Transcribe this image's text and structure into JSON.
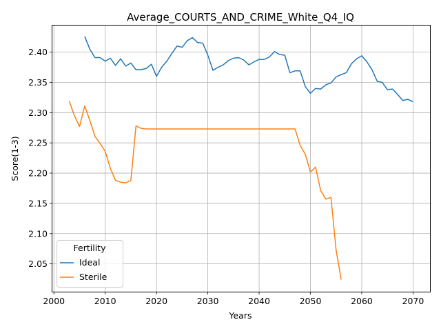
{
  "chart_data": {
    "type": "line",
    "title": "Average_COURTS_AND_CRIME_White_Q4_IQ",
    "xlabel": "Years",
    "ylabel": "Score(1-3)",
    "xlim": [
      1999.7,
      2073.3
    ],
    "ylim": [
      2.004,
      2.444
    ],
    "x_ticks": [
      2000,
      2010,
      2020,
      2030,
      2040,
      2050,
      2060,
      2070
    ],
    "x_tick_labels": [
      "2000",
      "2010",
      "2020",
      "2030",
      "2040",
      "2050",
      "2060",
      "2070"
    ],
    "y_ticks": [
      2.05,
      2.1,
      2.15,
      2.2,
      2.25,
      2.3,
      2.35,
      2.4
    ],
    "y_tick_labels": [
      "2.05",
      "2.10",
      "2.15",
      "2.20",
      "2.25",
      "2.30",
      "2.35",
      "2.40"
    ],
    "grid": true,
    "legend": {
      "title": "Fertility",
      "placement": "lower-left"
    },
    "series": [
      {
        "name": "Ideal",
        "color": "#1f77b4",
        "x": [
          2006,
          2007,
          2008,
          2009,
          2010,
          2011,
          2012,
          2013,
          2014,
          2015,
          2016,
          2017,
          2018,
          2019,
          2020,
          2021,
          2022,
          2023,
          2024,
          2025,
          2026,
          2027,
          2028,
          2029,
          2030,
          2031,
          2032,
          2033,
          2034,
          2035,
          2036,
          2037,
          2038,
          2039,
          2040,
          2041,
          2042,
          2043,
          2044,
          2045,
          2046,
          2047,
          2048,
          2049,
          2050,
          2051,
          2052,
          2053,
          2054,
          2055,
          2056,
          2057,
          2058,
          2059,
          2060,
          2061,
          2062,
          2063,
          2064,
          2065,
          2066,
          2067,
          2068,
          2069,
          2070
        ],
        "y": [
          2.426,
          2.405,
          2.391,
          2.391,
          2.385,
          2.39,
          2.378,
          2.389,
          2.377,
          2.382,
          2.371,
          2.371,
          2.373,
          2.38,
          2.36,
          2.375,
          2.385,
          2.398,
          2.41,
          2.408,
          2.419,
          2.424,
          2.416,
          2.415,
          2.395,
          2.37,
          2.375,
          2.379,
          2.386,
          2.39,
          2.391,
          2.387,
          2.379,
          2.384,
          2.388,
          2.388,
          2.392,
          2.401,
          2.396,
          2.395,
          2.366,
          2.369,
          2.369,
          2.343,
          2.332,
          2.34,
          2.339,
          2.346,
          2.349,
          2.359,
          2.363,
          2.366,
          2.381,
          2.389,
          2.394,
          2.384,
          2.371,
          2.352,
          2.35,
          2.338,
          2.339,
          2.33,
          2.32,
          2.322,
          2.318
        ]
      },
      {
        "name": "Sterile",
        "color": "#ff7f0e",
        "x": [
          2003,
          2004,
          2005,
          2006,
          2007,
          2008,
          2009,
          2010,
          2011,
          2012,
          2013,
          2014,
          2015,
          2016,
          2017,
          2018,
          2019,
          2020,
          2021,
          2022,
          2023,
          2024,
          2025,
          2026,
          2027,
          2028,
          2029,
          2030,
          2031,
          2032,
          2033,
          2034,
          2035,
          2036,
          2037,
          2038,
          2039,
          2040,
          2041,
          2042,
          2043,
          2044,
          2045,
          2046,
          2047,
          2048,
          2049,
          2050,
          2051,
          2052,
          2053,
          2054,
          2055,
          2056
        ],
        "y": [
          2.319,
          2.295,
          2.277,
          2.311,
          2.287,
          2.261,
          2.249,
          2.236,
          2.208,
          2.188,
          2.185,
          2.184,
          2.188,
          2.278,
          2.274,
          2.273,
          2.273,
          2.273,
          2.273,
          2.273,
          2.273,
          2.273,
          2.273,
          2.273,
          2.273,
          2.273,
          2.273,
          2.273,
          2.273,
          2.273,
          2.273,
          2.273,
          2.273,
          2.273,
          2.273,
          2.273,
          2.273,
          2.273,
          2.273,
          2.273,
          2.273,
          2.273,
          2.273,
          2.273,
          2.273,
          2.246,
          2.231,
          2.202,
          2.21,
          2.171,
          2.157,
          2.16,
          2.073,
          2.024
        ]
      }
    ]
  }
}
